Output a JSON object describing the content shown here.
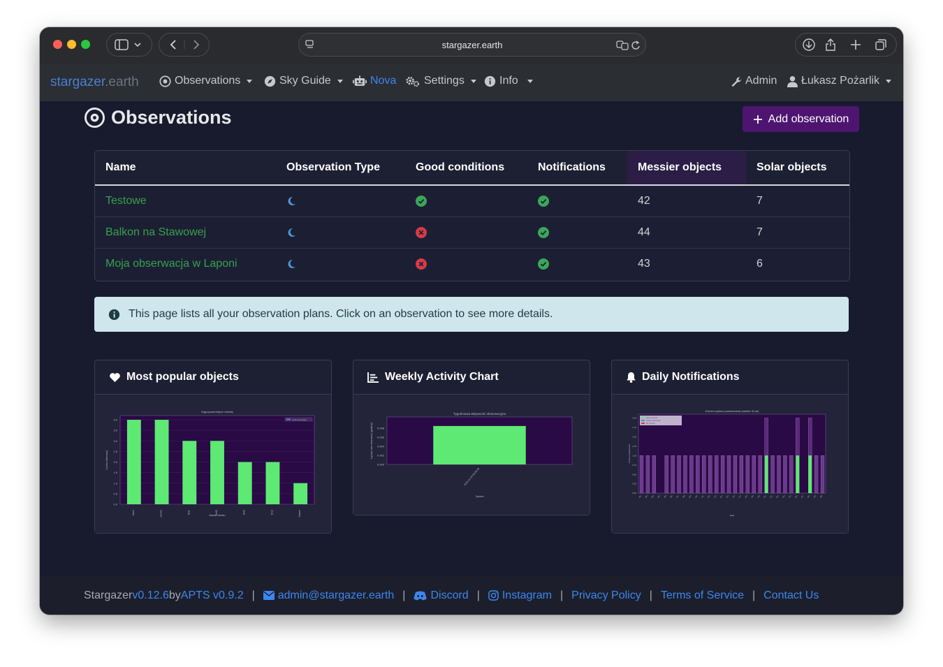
{
  "browser": {
    "url": "stargazer.earth",
    "traffic_colors": {
      "close": "#ff5f57",
      "minimize": "#febc2e",
      "zoom": "#28c840"
    }
  },
  "navbar": {
    "brand_part1": "stargazer",
    "brand_part2": ".earth",
    "items": [
      {
        "label": "Observations",
        "icon": "eye-icon"
      },
      {
        "label": "Sky Guide",
        "icon": "compass-icon"
      },
      {
        "label": "Nova",
        "icon": "robot-icon"
      },
      {
        "label": "Settings",
        "icon": "gears-icon"
      },
      {
        "label": "Info",
        "icon": "info-circle-icon"
      }
    ],
    "admin_label": "Admin",
    "user_label": "Łukasz Pożarlik"
  },
  "page": {
    "title": "Observations",
    "add_button_label": "Add observation",
    "info_text": "This page lists all your observation plans. Click on an observation to see more details."
  },
  "table": {
    "headers": [
      "Name",
      "Observation Type",
      "Good conditions",
      "Notifications",
      "Messier objects",
      "Solar objects"
    ],
    "rows": [
      {
        "name": "Testowe",
        "type": "moon-icon",
        "good_conditions": true,
        "notifications": true,
        "messier": "42",
        "solar": "7"
      },
      {
        "name": "Balkon na Stawowej",
        "type": "moon-icon",
        "good_conditions": false,
        "notifications": true,
        "messier": "44",
        "solar": "7"
      },
      {
        "name": "Moja obserwacja w Laponi",
        "type": "moon-icon",
        "good_conditions": false,
        "notifications": true,
        "messier": "43",
        "solar": "6"
      }
    ]
  },
  "cards": {
    "popular": {
      "title": "Most popular objects"
    },
    "weekly": {
      "title": "Weekly Activity Chart"
    },
    "daily": {
      "title": "Daily Notifications"
    }
  },
  "chart_data": [
    {
      "type": "bar",
      "title": "Najpopularniejsze obiekty",
      "xlabel": "Nazwa obiektu",
      "ylabel": "Liczba obserwacji",
      "categories": [
        "Mars",
        "Jowisz",
        "M31",
        "M45",
        "M42",
        "M13",
        "Saturn"
      ],
      "values": [
        4,
        4,
        3,
        3,
        2,
        2,
        1
      ],
      "ylim": [
        0,
        4.2
      ],
      "yticks": [
        "0.0",
        "0.5",
        "1.0",
        "1.5",
        "2.0",
        "2.5",
        "3.0",
        "3.5",
        "4.0"
      ],
      "legend": "Liczba obserwacji"
    },
    {
      "type": "bar",
      "title": "Tygodniowa aktywność obserwacyjna",
      "xlabel": "Tydzień",
      "ylabel": "Łączny czas obserwacji (godziny)",
      "categories": [
        "2025-11-03 00:00:00"
      ],
      "values": [
        0.0085
      ],
      "ylim": [
        0,
        0.0105
      ],
      "yticks": [
        "0.000",
        "0.002",
        "0.004",
        "0.006",
        "0.008"
      ]
    },
    {
      "type": "bar",
      "title": "Dzienne wysłane powiadomienia (ostatnie 30 dni)",
      "xlabel": "Data",
      "ylabel": "Liczba powiadomień",
      "ylim": [
        0,
        2.1
      ],
      "yticks": [
        "0.00",
        "0.25",
        "0.50",
        "0.75",
        "1.00",
        "1.25",
        "1.50",
        "1.75",
        "2.00"
      ],
      "legend": [
        "Dobre warunki",
        "Zmiana warunków",
        "Złe warunki"
      ],
      "series": [
        {
          "name": "Dobre warunki",
          "values": [
            0,
            0,
            0,
            0,
            0,
            0,
            0,
            0,
            0,
            0,
            0,
            0,
            0,
            0,
            0,
            0,
            0,
            0,
            0,
            0,
            1,
            0,
            0,
            0,
            0,
            1,
            0,
            1,
            0,
            0
          ]
        },
        {
          "name": "Złe warunki",
          "values": [
            1,
            1,
            1,
            0,
            1,
            1,
            1,
            1,
            1,
            1,
            1,
            1,
            1,
            1,
            1,
            1,
            1,
            1,
            1,
            1,
            1,
            1,
            1,
            1,
            1,
            1,
            0,
            1,
            1,
            1
          ]
        }
      ],
      "categories": [
        "d01",
        "d02",
        "d03",
        "d04",
        "d05",
        "d06",
        "d07",
        "d08",
        "d09",
        "d10",
        "d11",
        "d12",
        "d13",
        "d14",
        "d15",
        "d16",
        "d17",
        "d18",
        "d19",
        "d20",
        "d21",
        "d22",
        "d23",
        "d24",
        "d25",
        "d26",
        "d27",
        "d28",
        "d29",
        "d30"
      ]
    }
  ],
  "footer": {
    "app_prefix": "Stargazer ",
    "app_version": "v0.12.6",
    "by_text": " by ",
    "apts_label": "APTS v0.9.2",
    "email": "admin@stargazer.earth",
    "discord": "Discord",
    "instagram": "Instagram",
    "privacy": "Privacy Policy",
    "terms": "Terms of Service",
    "contact": "Contact Us"
  }
}
